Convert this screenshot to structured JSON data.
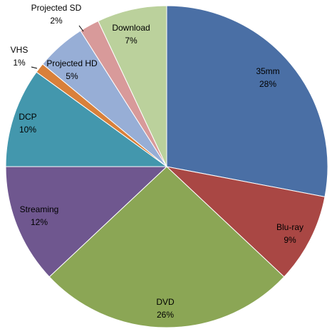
{
  "chart_data": {
    "type": "pie",
    "title": "",
    "start_angle_deg": 0,
    "direction": "clockwise",
    "legend": "none",
    "labels_show": [
      "category",
      "percent"
    ],
    "slices": [
      {
        "label": "35mm",
        "value": 28,
        "pct_text": "28%",
        "color": "#4A6FA5"
      },
      {
        "label": "Blu-ray",
        "value": 9,
        "pct_text": "9%",
        "color": "#A94744"
      },
      {
        "label": "DVD",
        "value": 26,
        "pct_text": "26%",
        "color": "#8BA655"
      },
      {
        "label": "Streaming",
        "value": 12,
        "pct_text": "12%",
        "color": "#6F578F"
      },
      {
        "label": "DCP",
        "value": 10,
        "pct_text": "10%",
        "color": "#4397AD"
      },
      {
        "label": "VHS",
        "value": 1,
        "pct_text": "1%",
        "color": "#D9803A"
      },
      {
        "label": "Projected HD",
        "value": 5,
        "pct_text": "5%",
        "color": "#97AED6"
      },
      {
        "label": "Projected SD",
        "value": 2,
        "pct_text": "2%",
        "color": "#D89A9A"
      },
      {
        "label": "Download",
        "value": 7,
        "pct_text": "7%",
        "color": "#BBD19C"
      }
    ]
  }
}
